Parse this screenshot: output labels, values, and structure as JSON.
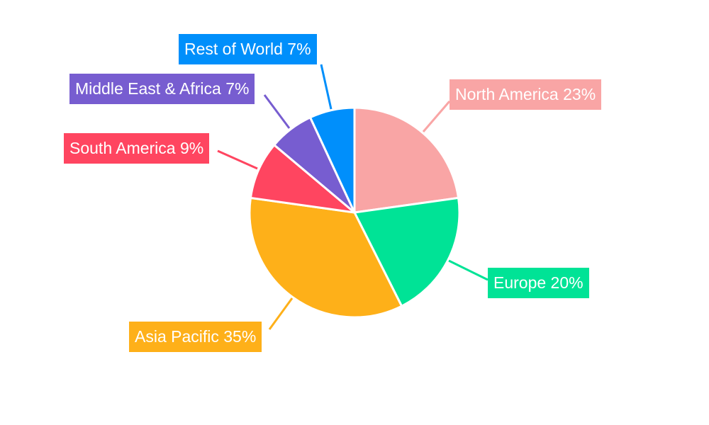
{
  "chart_data": {
    "type": "pie",
    "title": "",
    "start_angle": "top",
    "direction": "clockwise",
    "legend": "none",
    "slices": [
      {
        "name": "North America",
        "value": 23,
        "label": "North America 23%",
        "color": "#f9a5a5"
      },
      {
        "name": "Europe",
        "value": 20,
        "label": "Europe 20%",
        "color": "#00e396"
      },
      {
        "name": "Asia Pacific",
        "value": 35,
        "label": "Asia Pacific 35%",
        "color": "#feb019"
      },
      {
        "name": "South America",
        "value": 9,
        "label": "South America 9%",
        "color": "#ff4560"
      },
      {
        "name": "Middle East & Africa",
        "value": 7,
        "label": "Middle East & Africa 7%",
        "color": "#775dd0"
      },
      {
        "name": "Rest of World",
        "value": 7,
        "label": "Rest of World 7%",
        "color": "#008ffb"
      }
    ]
  }
}
